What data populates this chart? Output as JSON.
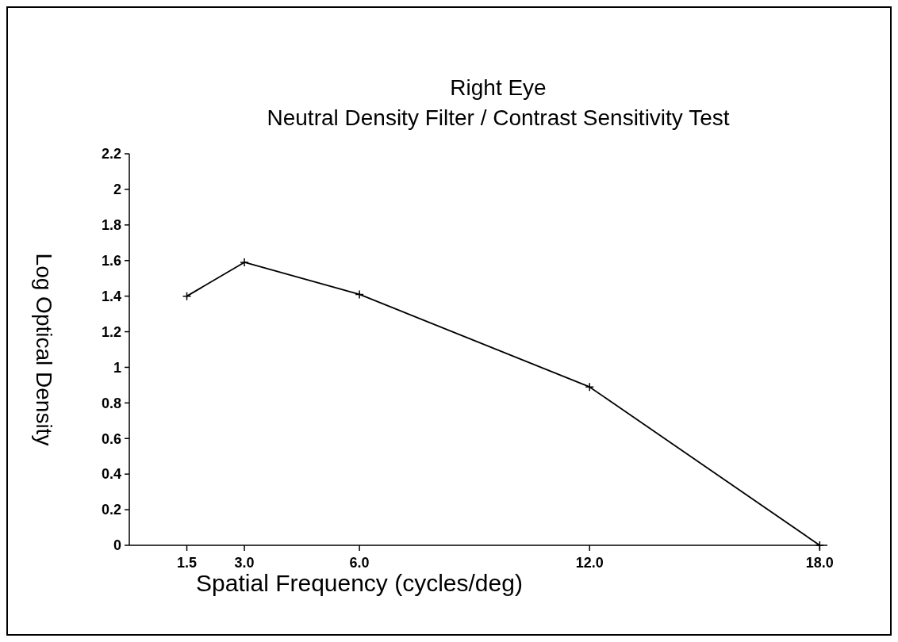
{
  "chart_data": {
    "type": "line",
    "title": "Right Eye",
    "subtitle": "Neutral Density Filter / Contrast Sensitivity Test",
    "xlabel": "Spatial Frequency (cycles/deg)",
    "ylabel": "Log Optical Density",
    "x": [
      1.5,
      3.0,
      6.0,
      12.0,
      18.0
    ],
    "series": [
      {
        "color": "#000000",
        "values": [
          1.4,
          1.59,
          1.41,
          0.89,
          0
        ]
      }
    ],
    "xlim": [
      0,
      18.2
    ],
    "xticks": [
      1.5,
      {
        "value": 3,
        "label": "3.0"
      },
      {
        "value": 6,
        "label": "6.0"
      },
      {
        "value": 12,
        "label": "12.0"
      },
      {
        "value": 18,
        "label": "18.0"
      }
    ],
    "ylim": [
      0,
      2.2
    ],
    "yticks": [
      0,
      0.2,
      0.4,
      0.6,
      0.8,
      1,
      1.2,
      1.4,
      1.6,
      1.8,
      2,
      2.2
    ],
    "marker": "cross",
    "line_style": "solid",
    "grid": false
  }
}
